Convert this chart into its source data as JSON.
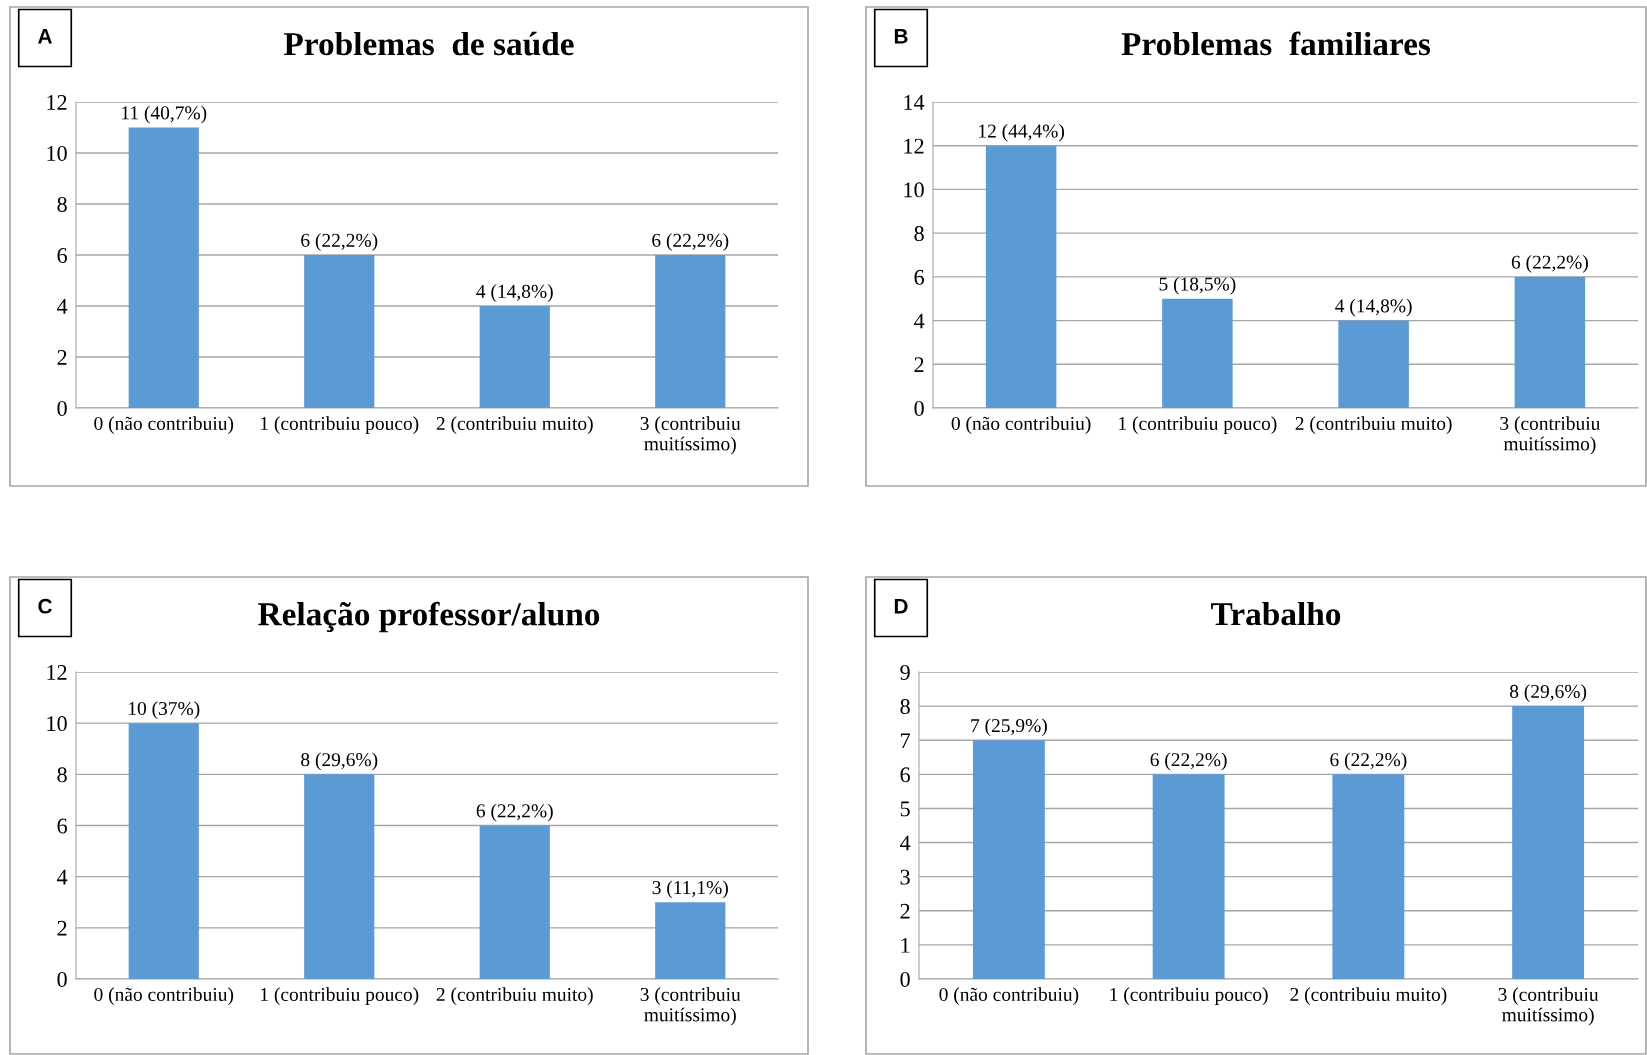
{
  "chart_data": [
    {
      "type": "bar",
      "title": "Problemas  de saúde",
      "annotations": [
        "A"
      ],
      "categories": [
        "0 (não contribuiu)",
        "1 (contribuiu pouco)",
        "2 (contribuiu muito)",
        "3 (contribuiu\nmuitíssimo)"
      ],
      "values": [
        11,
        6,
        4,
        6
      ],
      "value_labels": [
        "11 (40,7%)",
        "6 (22,2%)",
        "4 (14,8%)",
        "6 (22,2%)"
      ],
      "color": "#5b9bd5",
      "ylim": [
        0,
        12
      ],
      "yticks": [
        0,
        2,
        4,
        6,
        8,
        10,
        12
      ],
      "grid": "y"
    },
    {
      "type": "bar",
      "title": "Problemas  familiares",
      "annotations": [
        "B"
      ],
      "categories": [
        "0 (não contribuiu)",
        "1 (contribuiu pouco)",
        "2 (contribuiu muito)",
        "3 (contribuiu\nmuitíssimo)"
      ],
      "values": [
        12,
        5,
        4,
        6
      ],
      "value_labels": [
        "12 (44,4%)",
        "5 (18,5%)",
        "4 (14,8%)",
        "6 (22,2%)"
      ],
      "color": "#5b9bd5",
      "ylim": [
        0,
        14
      ],
      "yticks": [
        0,
        2,
        4,
        6,
        8,
        10,
        12,
        14
      ],
      "grid": "y"
    },
    {
      "type": "bar",
      "title": "Relação professor/aluno",
      "annotations": [
        "C"
      ],
      "categories": [
        "0 (não contribuiu)",
        "1 (contribuiu pouco)",
        "2 (contribuiu muito)",
        "3 (contribuiu\nmuitíssimo)"
      ],
      "values": [
        10,
        8,
        6,
        3
      ],
      "value_labels": [
        "10 (37%)",
        "8 (29,6%)",
        "6 (22,2%)",
        "3 (11,1%)"
      ],
      "color": "#5b9bd5",
      "ylim": [
        0,
        12
      ],
      "yticks": [
        0,
        2,
        4,
        6,
        8,
        10,
        12
      ],
      "grid": "y"
    },
    {
      "type": "bar",
      "title": "Trabalho",
      "annotations": [
        "D"
      ],
      "categories": [
        "0 (não contribuiu)",
        "1 (contribuiu pouco)",
        "2 (contribuiu muito)",
        "3 (contribuiu\nmuitíssimo)"
      ],
      "values": [
        7,
        6,
        6,
        8
      ],
      "value_labels": [
        "7 (25,9%)",
        "6 (22,2%)",
        "6 (22,2%)",
        "8 (29,6%)"
      ],
      "color": "#5b9bd5",
      "ylim": [
        0,
        9
      ],
      "yticks": [
        0,
        1,
        2,
        3,
        4,
        5,
        6,
        7,
        8,
        9
      ],
      "grid": "y"
    }
  ]
}
